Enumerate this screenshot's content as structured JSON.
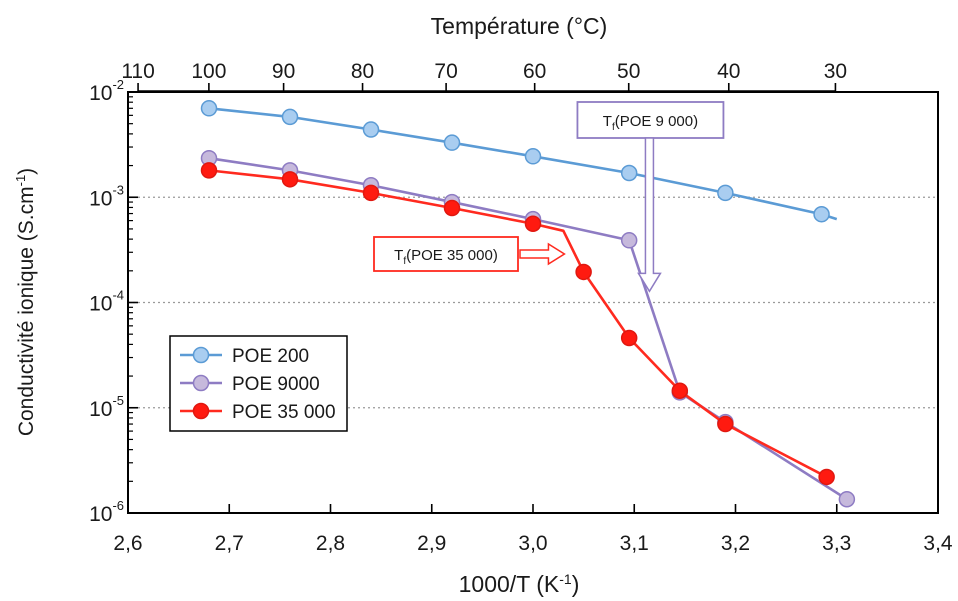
{
  "chart_data": {
    "type": "line",
    "title": "",
    "xlabel": "1000/T (K-1)",
    "xlabel_main": "1000/T (K",
    "xlabel_sup": "-1",
    "xlabel_end": ")",
    "ylabel": "Conductivité ionique (S.cm-1)",
    "ylabel_main": "Conductivité ionique (S.cm",
    "ylabel_sup": "-1",
    "ylabel_end": ")",
    "x2label": "Température (°C)",
    "xlim": [
      2.6,
      3.4
    ],
    "ylim": [
      1e-06,
      0.01
    ],
    "yscale": "log",
    "grid": "horizontal dotted",
    "legend_position": "center-left",
    "x_ticks": [
      2.6,
      2.7,
      2.8,
      2.9,
      3.0,
      3.1,
      3.2,
      3.3,
      3.4
    ],
    "x_tick_labels": [
      "2,6",
      "2,7",
      "2,8",
      "2,9",
      "3,0",
      "3,1",
      "3,2",
      "3,3",
      "3,4"
    ],
    "y_ticks": [
      {
        "value": 0.01,
        "base": "10",
        "exp": "-2"
      },
      {
        "value": 0.001,
        "base": "10",
        "exp": "-3"
      },
      {
        "value": 0.0001,
        "base": "10",
        "exp": "-4"
      },
      {
        "value": 1e-05,
        "base": "10",
        "exp": "-5"
      },
      {
        "value": 1e-06,
        "base": "10",
        "exp": "-6"
      }
    ],
    "top_ticks": [
      {
        "value": 110,
        "label": "110"
      },
      {
        "value": 100,
        "label": "100"
      },
      {
        "value": 90,
        "label": "90"
      },
      {
        "value": 80,
        "label": "80"
      },
      {
        "value": 70,
        "label": "70"
      },
      {
        "value": 60,
        "label": "60"
      },
      {
        "value": 50,
        "label": "50"
      },
      {
        "value": 40,
        "label": "40"
      },
      {
        "value": 30,
        "label": "30"
      }
    ],
    "series": [
      {
        "name": "POE 200",
        "color": "#5b9bd5",
        "marker_fill": "#a9cdf0",
        "marker_stroke": "#5b9bd5",
        "x": [
          2.68,
          2.76,
          2.84,
          2.92,
          3.0,
          3.095,
          3.19,
          3.285
        ],
        "y": [
          0.007,
          0.0058,
          0.0044,
          0.0033,
          0.00245,
          0.0017,
          0.0011,
          0.00069
        ],
        "line_end": {
          "x": 3.3,
          "y": 0.00062
        }
      },
      {
        "name": "POE 9000",
        "color": "#8e7cc3",
        "marker_fill": "#c6b9dc",
        "marker_stroke": "#8e7cc3",
        "x": [
          2.68,
          2.76,
          2.84,
          2.92,
          3.0,
          3.095,
          3.145,
          3.19,
          3.31
        ],
        "y": [
          0.00235,
          0.0018,
          0.0013,
          0.0009,
          0.00062,
          0.00039,
          1.4e-05,
          7.3e-06,
          1.35e-06
        ]
      },
      {
        "name": "POE 35 000",
        "color": "#ff2a1f",
        "marker_fill": "#ff1a10",
        "marker_stroke": "#e01810",
        "x": [
          2.68,
          2.76,
          2.84,
          2.92,
          3.0,
          3.05,
          3.095,
          3.145,
          3.19,
          3.29
        ],
        "y": [
          0.0018,
          0.00148,
          0.0011,
          0.00079,
          0.00056,
          0.000195,
          4.6e-05,
          1.45e-05,
          7e-06,
          2.2e-06
        ],
        "markers_skip": [],
        "bend": {
          "x": 3.03,
          "y": 0.00048
        }
      }
    ],
    "annotations": [
      {
        "name": "tf-poe-9000",
        "text_main": "T",
        "text_sub": "f",
        "text_rest": "(POE 9 000)",
        "color": "#8e7cc3",
        "arrow": "down",
        "target_x": 3.115,
        "target_y": 9e-05
      },
      {
        "name": "tf-poe-35000",
        "text_main": "T",
        "text_sub": "f",
        "text_rest": "(POE 35 000)",
        "color": "#ff2a1f",
        "arrow": "right",
        "target_x": 3.035,
        "target_y": 0.00038
      }
    ]
  }
}
